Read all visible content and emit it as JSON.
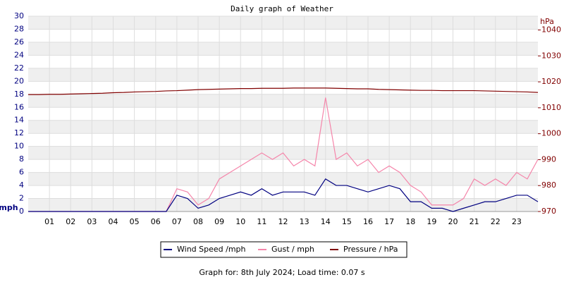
{
  "chart_data": {
    "type": "line",
    "title": "Daily graph of Weather",
    "y_label": "mph",
    "y2_label": "hPa",
    "footer": "Graph for: 8th July 2024; Load time: 0.07 s",
    "x": [
      0,
      0.5,
      1,
      1.5,
      2,
      2.5,
      3,
      3.5,
      4,
      4.5,
      5,
      5.5,
      6,
      6.5,
      7,
      7.5,
      8,
      8.5,
      9,
      9.5,
      10,
      10.5,
      11,
      11.5,
      12,
      12.5,
      13,
      13.5,
      14,
      14.5,
      15,
      15.5,
      16,
      16.5,
      17,
      17.5,
      18,
      18.5,
      19,
      19.5,
      20,
      20.5,
      21,
      21.5,
      22,
      22.5,
      23,
      23.5,
      24
    ],
    "xlim": [
      0,
      24
    ],
    "xticks": [
      {
        "value": 1,
        "label": "01"
      },
      {
        "value": 2,
        "label": "02"
      },
      {
        "value": 3,
        "label": "03"
      },
      {
        "value": 4,
        "label": "04"
      },
      {
        "value": 5,
        "label": "05"
      },
      {
        "value": 6,
        "label": "06"
      },
      {
        "value": 7,
        "label": "07"
      },
      {
        "value": 8,
        "label": "08"
      },
      {
        "value": 9,
        "label": "09"
      },
      {
        "value": 10,
        "label": "10"
      },
      {
        "value": 11,
        "label": "11"
      },
      {
        "value": 12,
        "label": "12"
      },
      {
        "value": 13,
        "label": "13"
      },
      {
        "value": 14,
        "label": "14"
      },
      {
        "value": 15,
        "label": "15"
      },
      {
        "value": 16,
        "label": "16"
      },
      {
        "value": 17,
        "label": "17"
      },
      {
        "value": 18,
        "label": "18"
      },
      {
        "value": 19,
        "label": "19"
      },
      {
        "value": 20,
        "label": "20"
      },
      {
        "value": 21,
        "label": "21"
      },
      {
        "value": 22,
        "label": "22"
      },
      {
        "value": 23,
        "label": "23"
      }
    ],
    "ylim": [
      0,
      30
    ],
    "yticks": [
      0,
      2,
      4,
      6,
      8,
      10,
      12,
      14,
      16,
      18,
      20,
      22,
      24,
      26,
      28,
      30
    ],
    "y2lim": [
      970,
      1045.3
    ],
    "y2ticks": [
      970,
      980,
      990,
      1000,
      1010,
      1020,
      1030,
      1040
    ],
    "grid": true,
    "series": [
      {
        "name": "Wind Speed /mph",
        "color": "#000080",
        "values": [
          0,
          0,
          0,
          0,
          0,
          0,
          0,
          0,
          0,
          0,
          0,
          0,
          0,
          0,
          2.5,
          2,
          0.5,
          1,
          2,
          2.5,
          3,
          2.5,
          3.5,
          2.5,
          3,
          3,
          3,
          2.5,
          5,
          4,
          4,
          3.5,
          3,
          3.5,
          4,
          3.5,
          1.5,
          1.5,
          0.5,
          0.5,
          0,
          0.5,
          1,
          1.5,
          1.5,
          2,
          2.5,
          2.5,
          1.5
        ]
      },
      {
        "name": "Gust / mph",
        "color": "#f585aa",
        "values": [
          0,
          0,
          0,
          0,
          0,
          0,
          0,
          0,
          0,
          0,
          0,
          0,
          0,
          0,
          3.5,
          3,
          1,
          2,
          5,
          6,
          7,
          8,
          9,
          8,
          9,
          7,
          8,
          7,
          17.5,
          8,
          9,
          7,
          8,
          6,
          7,
          6,
          4,
          3,
          1,
          1,
          1,
          2,
          5,
          4,
          5,
          4,
          6,
          5,
          8
        ]
      },
      {
        "name": "Pressure / hPa",
        "color": "#800000",
        "axis": "y2",
        "values": [
          1015.1,
          1015.1,
          1015.2,
          1015.2,
          1015.3,
          1015.4,
          1015.5,
          1015.6,
          1015.8,
          1015.9,
          1016.1,
          1016.2,
          1016.3,
          1016.5,
          1016.6,
          1016.8,
          1017.0,
          1017.1,
          1017.2,
          1017.3,
          1017.4,
          1017.4,
          1017.5,
          1017.5,
          1017.5,
          1017.6,
          1017.6,
          1017.6,
          1017.6,
          1017.5,
          1017.4,
          1017.3,
          1017.3,
          1017.1,
          1017.0,
          1016.9,
          1016.8,
          1016.7,
          1016.7,
          1016.6,
          1016.6,
          1016.6,
          1016.6,
          1016.5,
          1016.4,
          1016.3,
          1016.2,
          1016.1,
          1015.9
        ]
      }
    ]
  }
}
